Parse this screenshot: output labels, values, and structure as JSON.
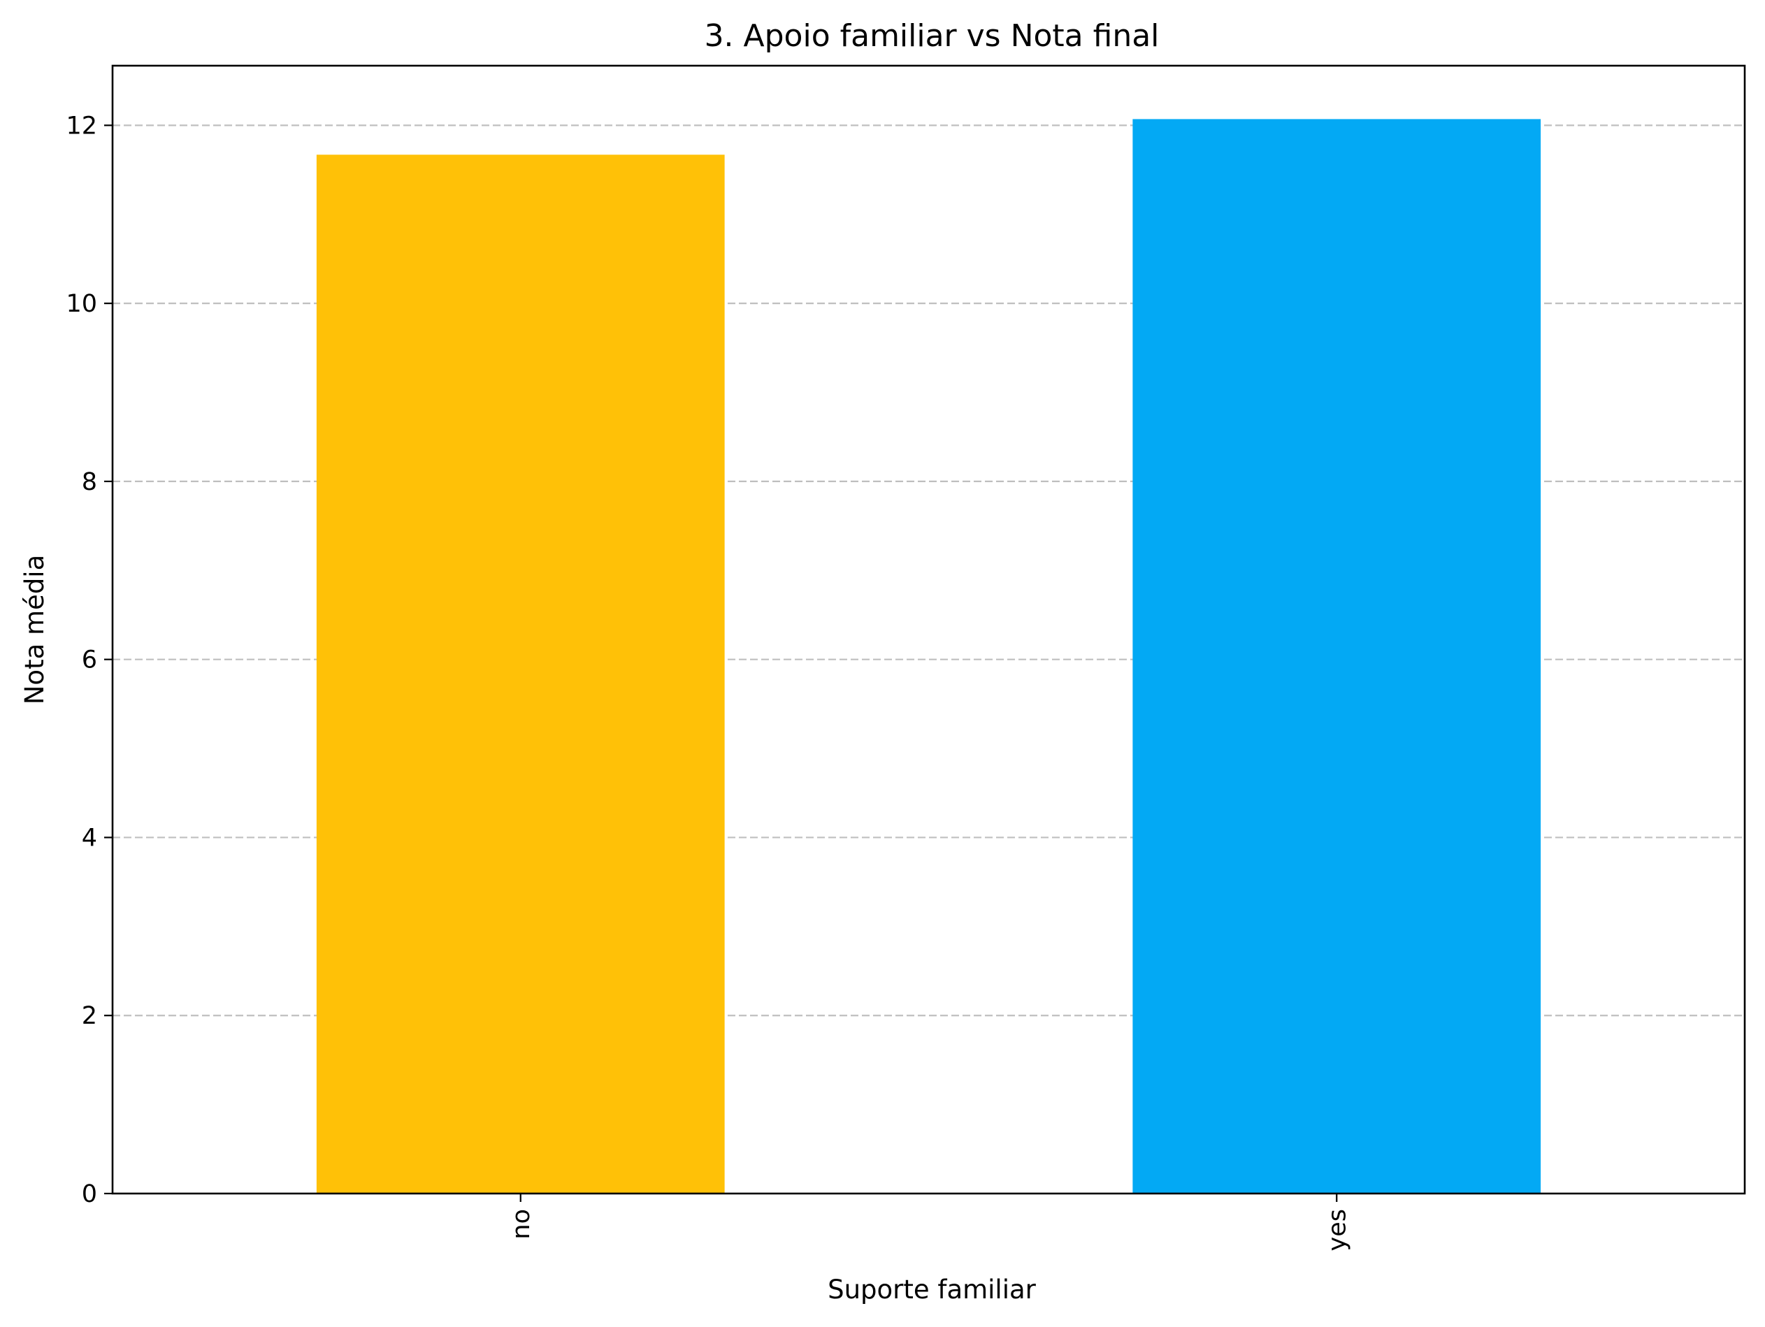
{
  "chart_data": {
    "type": "bar",
    "title": "3. Apoio familiar vs Nota final",
    "xlabel": "Suporte familiar",
    "ylabel": "Nota média",
    "categories": [
      "no",
      "yes"
    ],
    "values": [
      11.67,
      12.07
    ],
    "colors": [
      "#ffc107",
      "#03a9f4"
    ],
    "ylim": [
      0,
      12.67
    ],
    "yticks": [
      0,
      2,
      4,
      6,
      8,
      10,
      12
    ],
    "grid": "y-dashed",
    "xtick_rotation": "vertical",
    "legend": "none"
  }
}
